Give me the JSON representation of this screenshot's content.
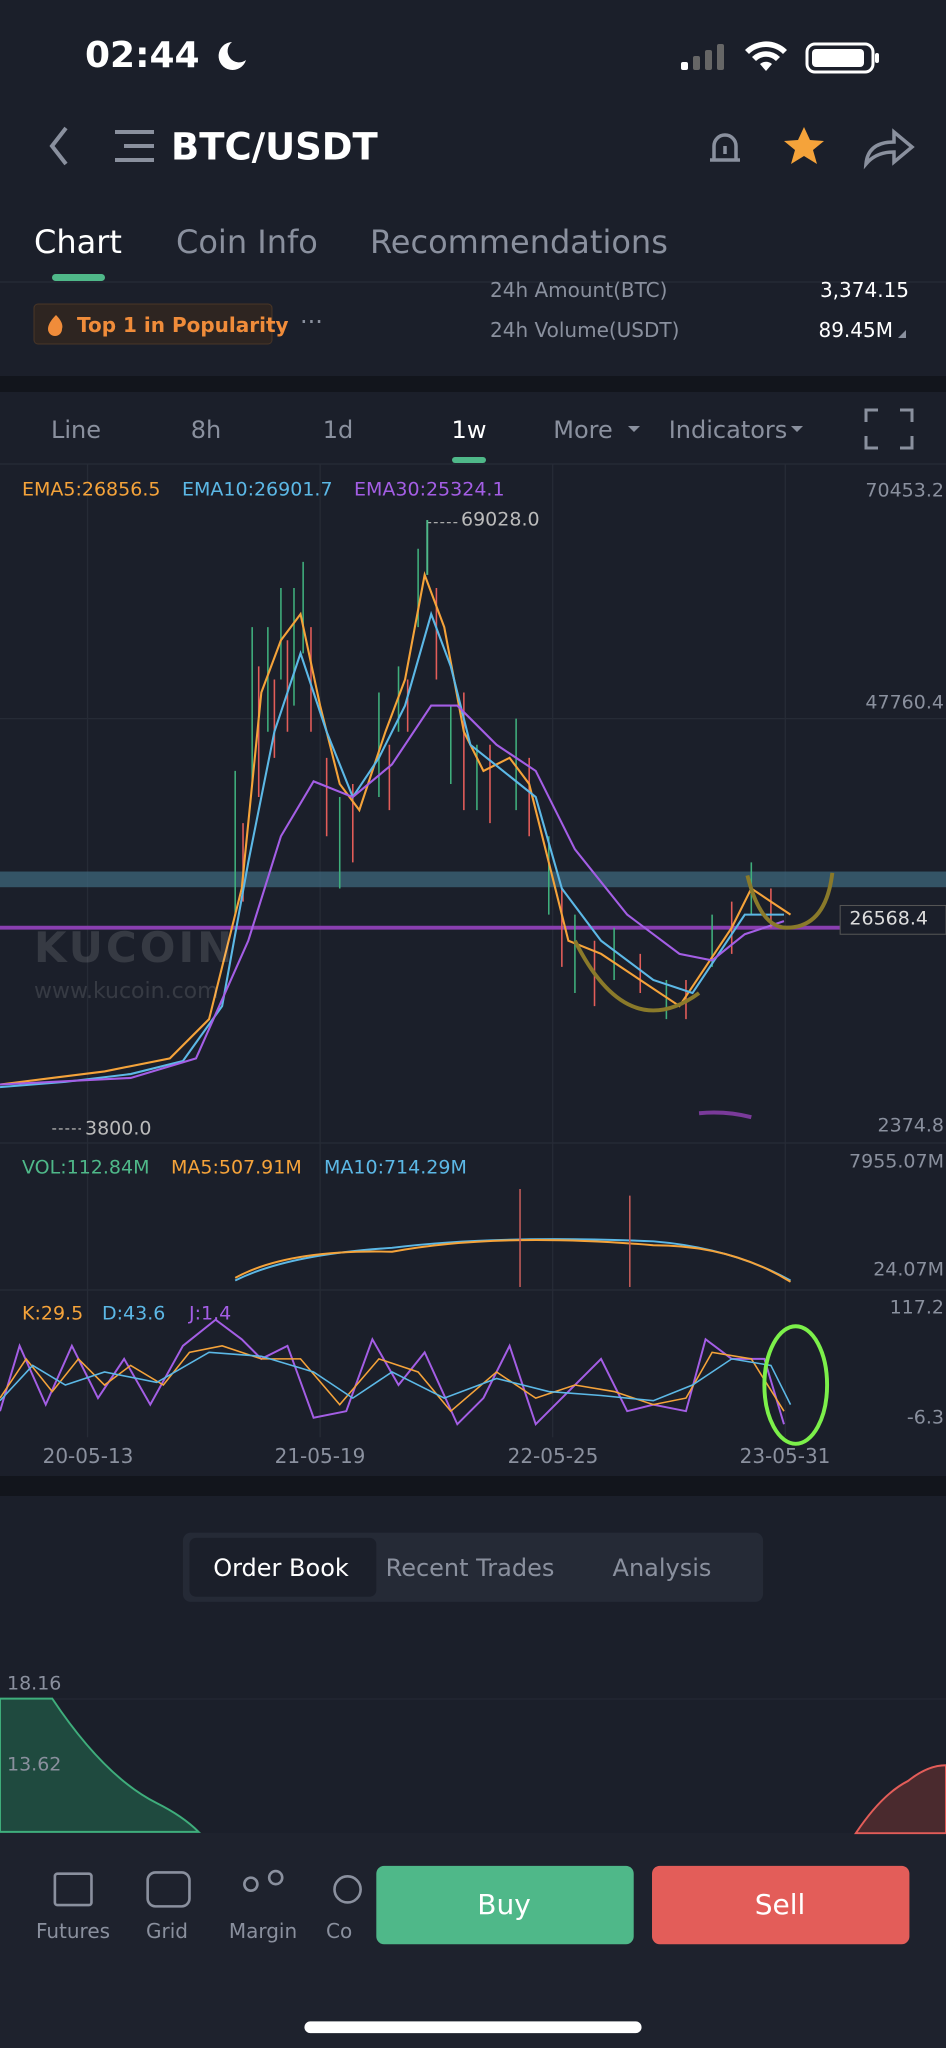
{
  "status_bar": {
    "time": "02:44"
  },
  "header": {
    "title": "BTC/USDT"
  },
  "tabs": [
    "Chart",
    "Coin Info",
    "Recommendations"
  ],
  "badge": "Top 1 in Popularity",
  "stats": [
    {
      "label": "24h Amount(BTC)",
      "value": "3,374.15"
    },
    {
      "label": "24h Volume(USDT)",
      "value": "89.45M"
    }
  ],
  "toolbar": [
    "Line",
    "8h",
    "1d",
    "1w",
    "More",
    "Indicators"
  ],
  "chart": {
    "ema": [
      "EMA5:26856.5",
      "EMA10:26901.7",
      "EMA30:25324.1"
    ],
    "price_axis": [
      "70453.2",
      "47760.4",
      "2374.8"
    ],
    "current_price": "26568.4",
    "high": "69028.0",
    "low": "3800.0",
    "volume": {
      "labels": [
        "VOL:112.84M",
        "MA5:507.91M",
        "MA10:714.29M"
      ],
      "axis": [
        "7955.07M",
        "24.07M"
      ]
    },
    "kdj": {
      "labels": [
        "K:29.5",
        "D:43.6",
        "J:1.4"
      ],
      "axis": [
        "117.2",
        "-6.3"
      ]
    },
    "dates": [
      "20-05-13",
      "21-05-19",
      "22-05-25",
      "23-05-31"
    ],
    "watermark": "KUCOIN",
    "watermark_url": "www.kucoin.com"
  },
  "order_tabs": [
    "Order Book",
    "Recent Trades",
    "Analysis"
  ],
  "depth_labels": [
    "18.16",
    "13.62"
  ],
  "bottom_nav": [
    "Futures",
    "Grid",
    "Margin",
    "Co"
  ],
  "buttons": {
    "buy": "Buy",
    "sell": "Sell"
  }
}
